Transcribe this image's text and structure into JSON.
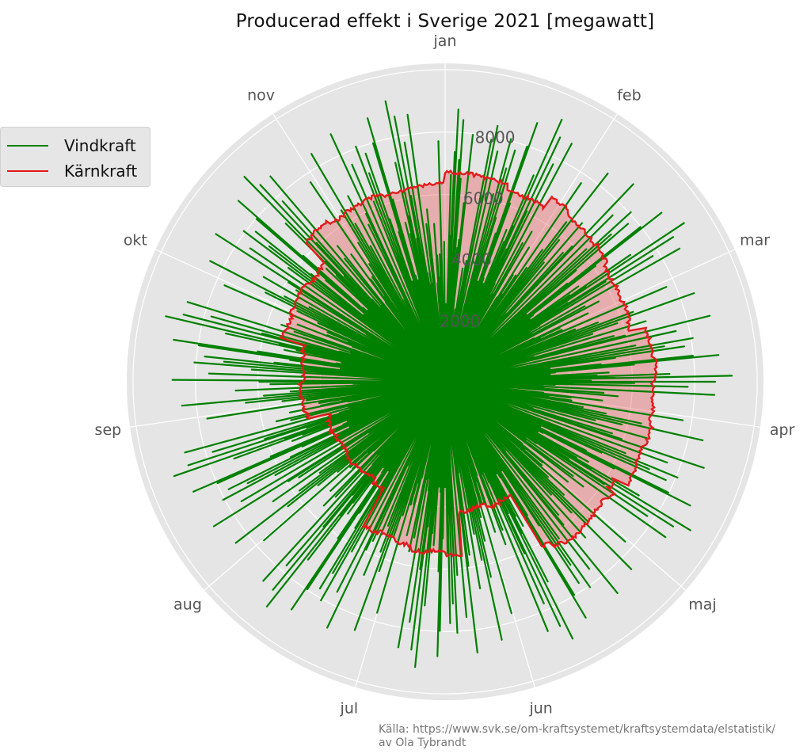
{
  "chart_data": {
    "type": "polar-line",
    "title": "Producerad effekt i Sverige 2021 [megawatt]",
    "theta_labels": [
      "jan",
      "feb",
      "mar",
      "apr",
      "maj",
      "jun",
      "jul",
      "aug",
      "sep",
      "okt",
      "nov"
    ],
    "theta_unit": "month",
    "radial_ticks": [
      2000,
      4000,
      6000,
      8000
    ],
    "radial_range": [
      0,
      10200
    ],
    "grid": true,
    "legend_position": "top-left",
    "series": [
      {
        "name": "Vindkraft",
        "color": "#008000",
        "fill": "rgba(0,128,0,0.25)",
        "description": "Vindkraft per timme, stark variation mellan ca 0 och 9300 MW",
        "values": []
      },
      {
        "name": "Kärnkraft",
        "color": "#e31a1c",
        "fill": "rgba(230,70,70,0.35)",
        "description": "Kärnkraft per timme, relativt stabil mellan ca 4000 och 7000 MW",
        "values": []
      }
    ],
    "source_line_1": "Källa: https://www.svk.se/om-kraftsystemet/kraftsystemdata/elstatistik/",
    "source_line_2": "av Ola Tybrandt"
  }
}
